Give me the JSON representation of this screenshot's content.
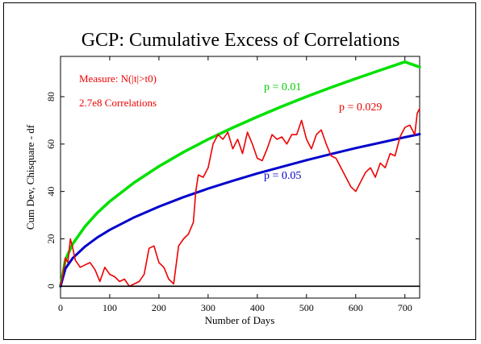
{
  "chart_data": {
    "type": "line",
    "title": "GCP: Cumulative Excess of Correlations",
    "xlabel": "Number of Days",
    "ylabel": "Cum Dev, Chisquare - df",
    "xlim": [
      0,
      730
    ],
    "ylim": [
      -5,
      97
    ],
    "x_ticks": [
      0,
      100,
      200,
      300,
      400,
      500,
      600,
      700
    ],
    "y_ticks": [
      0,
      20,
      40,
      60,
      80
    ],
    "annotations": {
      "measure": "Measure: N(|t|>t0)",
      "correlations": "2.7e8 Correlations",
      "p001": "p = 0.01",
      "p0029": "p = 0.029",
      "p005": "p = 0.05"
    },
    "series": [
      {
        "name": "p = 0.01",
        "color": "#00e000",
        "x": [
          0,
          10,
          25,
          50,
          75,
          100,
          150,
          200,
          250,
          300,
          350,
          400,
          450,
          500,
          550,
          600,
          650,
          700,
          730
        ],
        "y": [
          0,
          11.3,
          17.9,
          25.3,
          31.0,
          35.8,
          43.8,
          50.6,
          56.6,
          62.0,
          66.9,
          71.5,
          75.9,
          80.0,
          83.9,
          87.6,
          91.2,
          94.7,
          92.5
        ]
      },
      {
        "name": "p = 0.05",
        "color": "#0000cc",
        "x": [
          0,
          10,
          25,
          50,
          75,
          100,
          150,
          200,
          250,
          300,
          350,
          400,
          450,
          500,
          550,
          600,
          650,
          700,
          730
        ],
        "y": [
          0,
          7.5,
          11.9,
          16.8,
          20.6,
          23.8,
          29.1,
          33.6,
          37.6,
          41.2,
          44.5,
          47.6,
          50.4,
          53.2,
          55.8,
          58.3,
          60.6,
          62.9,
          64.2
        ]
      },
      {
        "name": "p = 0.029",
        "color": "#ee0000",
        "x": [
          0,
          5,
          10,
          15,
          20,
          25,
          30,
          40,
          50,
          60,
          70,
          80,
          90,
          100,
          110,
          120,
          130,
          140,
          150,
          160,
          170,
          180,
          190,
          200,
          210,
          220,
          230,
          240,
          250,
          260,
          270,
          275,
          280,
          290,
          300,
          310,
          320,
          330,
          340,
          350,
          360,
          370,
          380,
          390,
          400,
          410,
          420,
          430,
          440,
          450,
          460,
          470,
          480,
          490,
          500,
          510,
          520,
          530,
          540,
          550,
          560,
          570,
          580,
          590,
          600,
          610,
          620,
          630,
          640,
          650,
          660,
          670,
          680,
          690,
          700,
          710,
          720,
          725,
          730
        ],
        "y": [
          0,
          5,
          12,
          10,
          20,
          16,
          11,
          8,
          9,
          10,
          7,
          2,
          8,
          5,
          4,
          2,
          3,
          0,
          1,
          2,
          5,
          16,
          17,
          10,
          8,
          3,
          1,
          17,
          20,
          22,
          27,
          40,
          47,
          46,
          50,
          60,
          64,
          62,
          65,
          58,
          62,
          56,
          65,
          60,
          54,
          53,
          58,
          64,
          62,
          63,
          60,
          64,
          64,
          70,
          62,
          58,
          64,
          66,
          60,
          55,
          54,
          50,
          46,
          42,
          40,
          44,
          48,
          50,
          46,
          52,
          50,
          56,
          55,
          63,
          67,
          68,
          64,
          73,
          75
        ]
      },
      {
        "name": "baseline",
        "color": "#000000",
        "x": [
          0,
          730
        ],
        "y": [
          0,
          0
        ]
      }
    ]
  }
}
